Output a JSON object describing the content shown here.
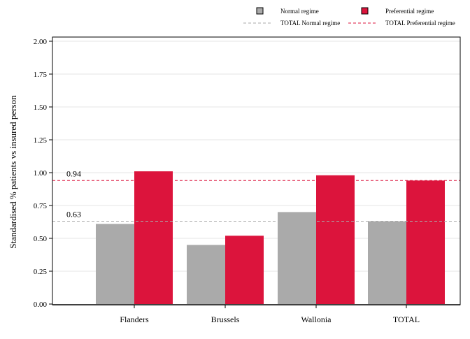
{
  "chart_data": {
    "type": "bar",
    "ylabel": "Standardised % patients vs insured person",
    "xlabel": "",
    "categories": [
      "Flanders",
      "Brussels",
      "Wallonia",
      "TOTAL"
    ],
    "series": [
      {
        "name": "Normal regime",
        "color": "#aaaaaa",
        "values": [
          0.61,
          0.45,
          0.7,
          0.63
        ]
      },
      {
        "name": "Preferential regime",
        "color": "#dc143c",
        "values": [
          1.01,
          0.52,
          0.98,
          0.94
        ]
      }
    ],
    "reference_lines": [
      {
        "name": "TOTAL Normal regime",
        "value": 0.63,
        "label": "0.63",
        "color": "#aaaaaa",
        "style": "dashed"
      },
      {
        "name": "TOTAL Preferential regime",
        "value": 0.94,
        "label": "0.94",
        "color": "#dc143c",
        "style": "dashed"
      }
    ],
    "ylim": [
      0,
      2.0
    ],
    "yticks": [
      "0.00",
      "0.25",
      "0.50",
      "0.75",
      "1.00",
      "1.25",
      "1.50",
      "1.75",
      "2.00"
    ],
    "grid": true,
    "legend_position": "top-right"
  }
}
